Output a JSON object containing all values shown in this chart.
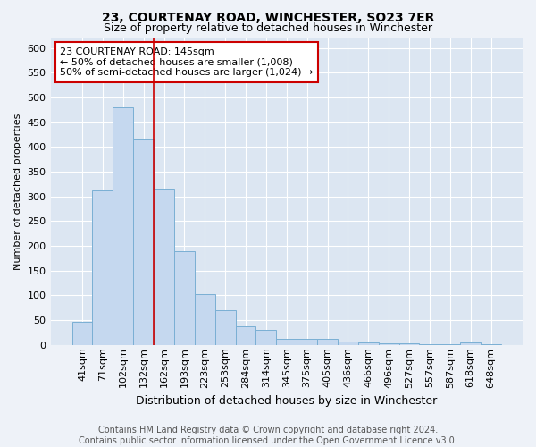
{
  "title": "23, COURTENAY ROAD, WINCHESTER, SO23 7ER",
  "subtitle": "Size of property relative to detached houses in Winchester",
  "xlabel": "Distribution of detached houses by size in Winchester",
  "ylabel": "Number of detached properties",
  "categories": [
    "41sqm",
    "71sqm",
    "102sqm",
    "132sqm",
    "162sqm",
    "193sqm",
    "223sqm",
    "253sqm",
    "284sqm",
    "314sqm",
    "345sqm",
    "375sqm",
    "405sqm",
    "436sqm",
    "466sqm",
    "496sqm",
    "527sqm",
    "557sqm",
    "587sqm",
    "618sqm",
    "648sqm"
  ],
  "values": [
    47,
    312,
    480,
    415,
    315,
    190,
    103,
    70,
    37,
    30,
    13,
    12,
    13,
    7,
    5,
    4,
    3,
    1,
    1,
    5,
    1
  ],
  "bar_color": "#c5d8ef",
  "bar_edge_color": "#7aafd4",
  "vline_color": "#cc0000",
  "vline_x": 3.5,
  "annotation_text": "23 COURTENAY ROAD: 145sqm\n← 50% of detached houses are smaller (1,008)\n50% of semi-detached houses are larger (1,024) →",
  "annotation_box_color": "white",
  "annotation_box_edge_color": "#cc0000",
  "footnote": "Contains HM Land Registry data © Crown copyright and database right 2024.\nContains public sector information licensed under the Open Government Licence v3.0.",
  "bg_color": "#eef2f8",
  "plot_bg_color": "#dce6f2",
  "grid_color": "#ffffff",
  "ylim": [
    0,
    620
  ],
  "yticks": [
    0,
    50,
    100,
    150,
    200,
    250,
    300,
    350,
    400,
    450,
    500,
    550,
    600
  ],
  "title_fontsize": 10,
  "subtitle_fontsize": 9,
  "xlabel_fontsize": 9,
  "ylabel_fontsize": 8,
  "tick_fontsize": 8,
  "annotation_fontsize": 8,
  "footnote_fontsize": 7
}
